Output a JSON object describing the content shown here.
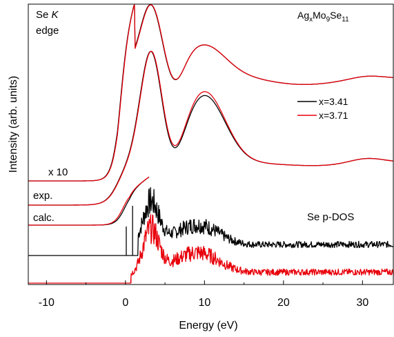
{
  "chart_data": {
    "type": "line",
    "xlabel": "Energy (eV)",
    "ylabel": "Intensity (arb. units)",
    "xlim": [
      -12.3,
      33.9
    ],
    "x_ticks": [
      -10,
      0,
      10,
      20,
      30
    ],
    "x_tick_labels": [
      "-10",
      "0",
      "10",
      "20",
      "30"
    ],
    "y_ticks_shown": false,
    "grid": false,
    "legend_position": "right",
    "annotations": {
      "edge_line1_prefix": "Se ",
      "edge_line1_italic": "K",
      "edge_line2": "edge",
      "compound_Ag": "Ag",
      "compound_x": "x",
      "compound_Mo": "Mo",
      "compound_9": "9",
      "compound_Se": "Se",
      "compound_11": "11",
      "magnification": "x 10",
      "exp_label": "exp.",
      "calc_label": "calc.",
      "dos_label": "Se p-DOS"
    },
    "series": [
      {
        "name": "x=3.41",
        "color": "#000000"
      },
      {
        "name": "x=3.71",
        "color": "#e8000b"
      }
    ],
    "curve_groups": [
      {
        "group": "x 10",
        "description_values": {
          "baseline": 0,
          "peak_x": 3.2,
          "secondary_peak_x": 10
        }
      },
      {
        "group": "exp.",
        "description_values": {
          "baseline": 0,
          "peak_x": 3.2,
          "secondary_peak_x": 10
        }
      },
      {
        "group": "calc.",
        "description_values": {
          "baseline": 0,
          "peak_x": 3.0,
          "secondary_peak_x": 10
        }
      }
    ]
  }
}
